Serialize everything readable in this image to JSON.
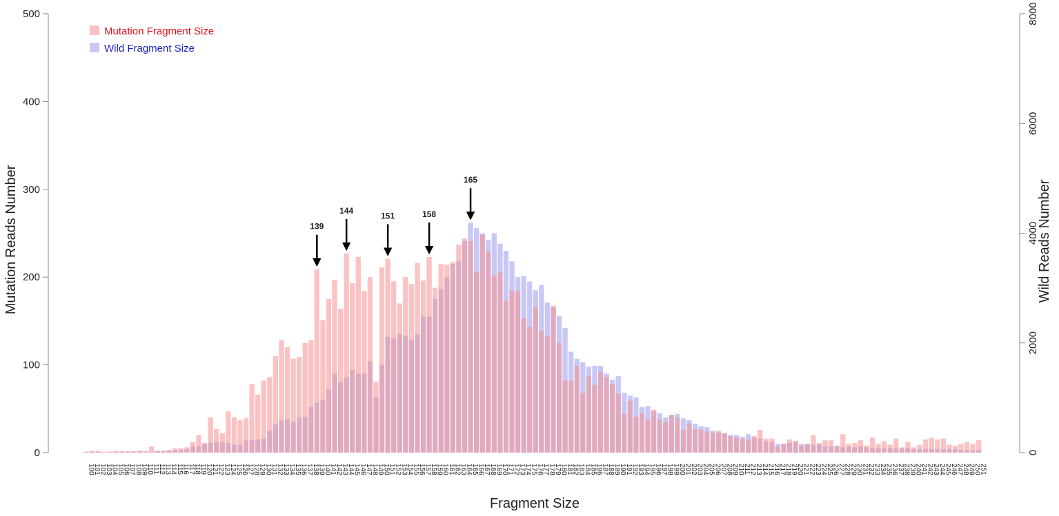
{
  "chart_data": {
    "type": "bar_overlap",
    "xlabel": "Fragment Size",
    "ylabel": "Mutation Reads Number",
    "y2label": "Wild Reads Number",
    "x": [
      100,
      101,
      102,
      103,
      104,
      105,
      106,
      107,
      108,
      109,
      110,
      111,
      112,
      113,
      114,
      115,
      116,
      117,
      118,
      119,
      120,
      121,
      122,
      123,
      124,
      125,
      126,
      127,
      128,
      129,
      130,
      131,
      132,
      133,
      134,
      135,
      136,
      137,
      138,
      139,
      140,
      141,
      142,
      143,
      144,
      145,
      146,
      147,
      148,
      149,
      150,
      151,
      152,
      153,
      154,
      155,
      156,
      157,
      158,
      159,
      160,
      161,
      162,
      163,
      164,
      165,
      166,
      167,
      168,
      169,
      170,
      171,
      172,
      173,
      174,
      175,
      176,
      177,
      178,
      179,
      180,
      181,
      182,
      183,
      184,
      185,
      186,
      187,
      188,
      189,
      190,
      191,
      192,
      193,
      194,
      195,
      196,
      197,
      198,
      199,
      200,
      201,
      202,
      203,
      204,
      205,
      206,
      207,
      208,
      209,
      210,
      211,
      212,
      213,
      214,
      215,
      216,
      217,
      218,
      219,
      220,
      221,
      222,
      223,
      224,
      225,
      226,
      227,
      228,
      229,
      230,
      231,
      232,
      233,
      234,
      235,
      236,
      237,
      238,
      239,
      240,
      241,
      242,
      243,
      244,
      245,
      246,
      247,
      248,
      249,
      250,
      251
    ],
    "xlim": [
      99.5,
      251.5
    ],
    "ylim": [
      0,
      500
    ],
    "yticks": [
      0,
      100,
      200,
      300,
      400,
      500
    ],
    "y2lim": [
      0,
      8000
    ],
    "y2ticks": [
      0,
      2000,
      4000,
      6000,
      8000
    ],
    "opacity": 0.55,
    "legend": "top-left",
    "series": [
      {
        "name": "Mutation Fragment Size",
        "color": "#f58f8f",
        "label_color": "#e3121c",
        "values": [
          1,
          2,
          2,
          1,
          1,
          2,
          2,
          2,
          2,
          2,
          2,
          7,
          2,
          2,
          3,
          5,
          5,
          6,
          12,
          20,
          11,
          40,
          27,
          22,
          47,
          40,
          37,
          39,
          78,
          66,
          82,
          86,
          110,
          128,
          120,
          107,
          109,
          125,
          128,
          209,
          151,
          175,
          197,
          164,
          227,
          193,
          223,
          184,
          200,
          81,
          211,
          221,
          195,
          170,
          200,
          192,
          216,
          196,
          223,
          188,
          215,
          214,
          217,
          237,
          244,
          241,
          206,
          248,
          229,
          202,
          206,
          173,
          185,
          184,
          153,
          143,
          166,
          139,
          133,
          167,
          125,
          82,
          82,
          99,
          68,
          87,
          77,
          92,
          86,
          78,
          67,
          44,
          59,
          41,
          45,
          38,
          49,
          38,
          35,
          43,
          40,
          26,
          33,
          27,
          26,
          24,
          22,
          25,
          22,
          19,
          17,
          16,
          15,
          19,
          26,
          16,
          16,
          7,
          10,
          15,
          13,
          8,
          10,
          20,
          11,
          14,
          14,
          7,
          21,
          10,
          11,
          14,
          8,
          17,
          10,
          13,
          9,
          16,
          6,
          12,
          6,
          9,
          15,
          17,
          15,
          16,
          9,
          8,
          10,
          12,
          10,
          14
        ]
      },
      {
        "name": "Wild Fragment Size",
        "color": "#9a9af0",
        "label_color": "#1d1dc4",
        "axis": "y2",
        "values": [
          16,
          16,
          16,
          8,
          16,
          16,
          16,
          16,
          16,
          32,
          16,
          16,
          32,
          32,
          32,
          48,
          48,
          64,
          112,
          112,
          160,
          176,
          192,
          192,
          176,
          144,
          144,
          224,
          224,
          240,
          256,
          400,
          512,
          592,
          608,
          560,
          640,
          656,
          832,
          912,
          960,
          1152,
          1440,
          1280,
          1376,
          1504,
          1440,
          1440,
          1664,
          1008,
          1600,
          2112,
          2080,
          2160,
          2128,
          2048,
          2160,
          2480,
          2480,
          2800,
          2976,
          3200,
          3440,
          3488,
          3856,
          4192,
          4096,
          4000,
          3872,
          4000,
          3808,
          3680,
          3488,
          3200,
          3216,
          3120,
          2960,
          3056,
          2736,
          2656,
          2496,
          2272,
          1840,
          1712,
          1648,
          1568,
          1584,
          1584,
          1440,
          1328,
          1392,
          1088,
          1040,
          1008,
          832,
          848,
          752,
          720,
          640,
          688,
          704,
          624,
          592,
          528,
          480,
          464,
          400,
          368,
          352,
          320,
          320,
          288,
          336,
          272,
          256,
          208,
          192,
          160,
          160,
          176,
          208,
          160,
          160,
          144,
          144,
          112,
          112,
          128,
          96,
          112,
          96,
          112,
          96,
          80,
          80,
          80,
          80,
          80,
          80,
          80,
          64,
          64,
          64,
          64,
          64,
          64,
          64,
          64,
          48,
          48,
          48,
          48
        ]
      }
    ],
    "annotations": [
      {
        "text": "139",
        "x": 139
      },
      {
        "text": "144",
        "x": 144
      },
      {
        "text": "151",
        "x": 151
      },
      {
        "text": "158",
        "x": 158
      },
      {
        "text": "165",
        "x": 165
      }
    ]
  }
}
